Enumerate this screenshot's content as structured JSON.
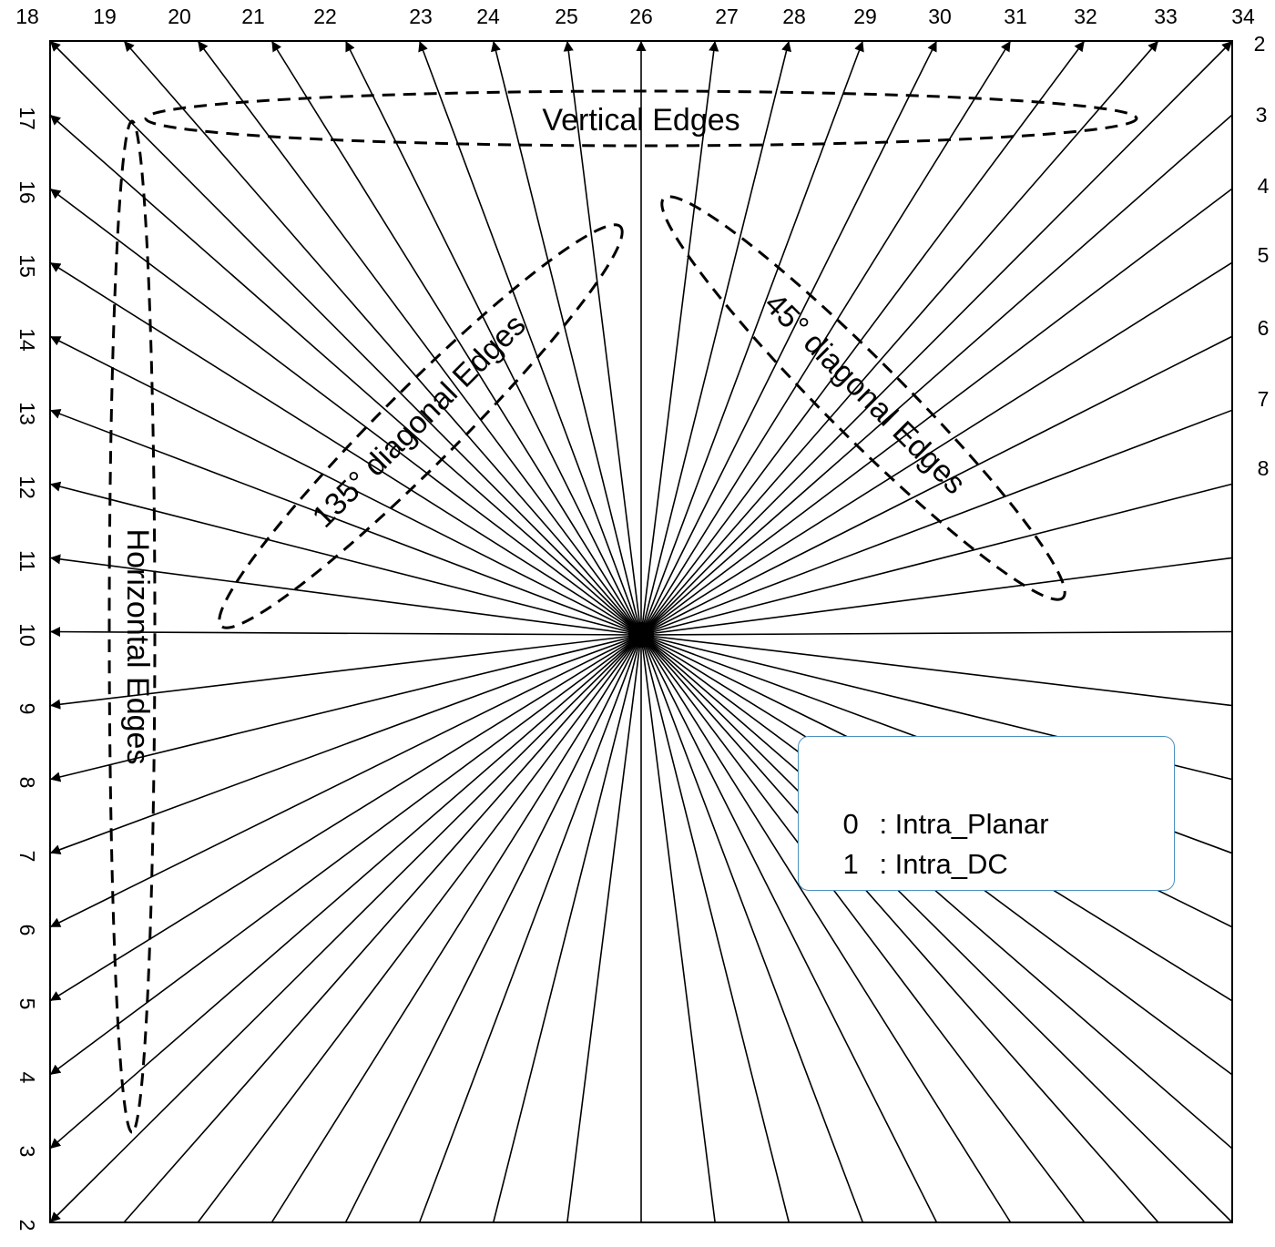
{
  "labels": {
    "top": [
      "18",
      "19",
      "20",
      "21",
      "22",
      "23",
      "24",
      "25",
      "26",
      "27",
      "28",
      "29",
      "30",
      "31",
      "32",
      "33",
      "34"
    ],
    "right": [
      "2",
      "3",
      "4",
      "5",
      "6",
      "7",
      "8"
    ],
    "left": [
      "17",
      "16",
      "15",
      "14",
      "13",
      "12",
      "11",
      "10",
      "9",
      "8",
      "7",
      "6",
      "5",
      "4",
      "3",
      "2"
    ]
  },
  "regions": {
    "vertical": "Vertical Edges",
    "horizontal": "Horizontal Edges",
    "diag135": "135° diagonal Edges",
    "diag45": "45° diagonal Edges"
  },
  "legend": {
    "items": [
      {
        "mode": "0",
        "name": ": Intra_Planar"
      },
      {
        "mode": "1",
        "name": ": Intra_DC"
      }
    ]
  },
  "colors": {
    "line": "#000000",
    "legend_border": "#4a90c2"
  }
}
